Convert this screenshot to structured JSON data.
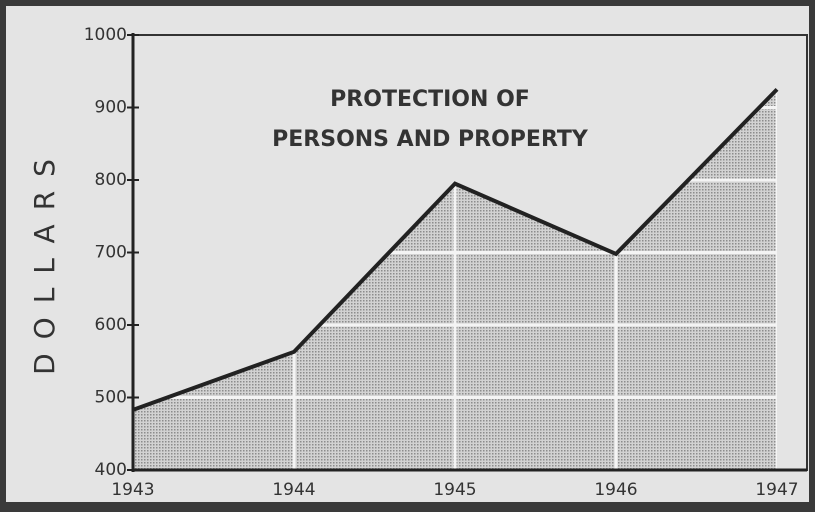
{
  "chart_data": {
    "type": "area",
    "title": [
      "PROTECTION OF",
      "PERSONS AND PROPERTY"
    ],
    "ylabel": "DOLLARS",
    "x": [
      1943,
      1944,
      1945,
      1946,
      1947
    ],
    "values": [
      483,
      563,
      795,
      698,
      925
    ],
    "xlim": [
      1943,
      1947
    ],
    "xticks": [
      1943,
      1944,
      1945,
      1946,
      1947
    ],
    "ylim": [
      400,
      1000
    ],
    "yticks": [
      400,
      500,
      600,
      700,
      800,
      900,
      1000
    ],
    "grid": true,
    "color": "#222222"
  }
}
